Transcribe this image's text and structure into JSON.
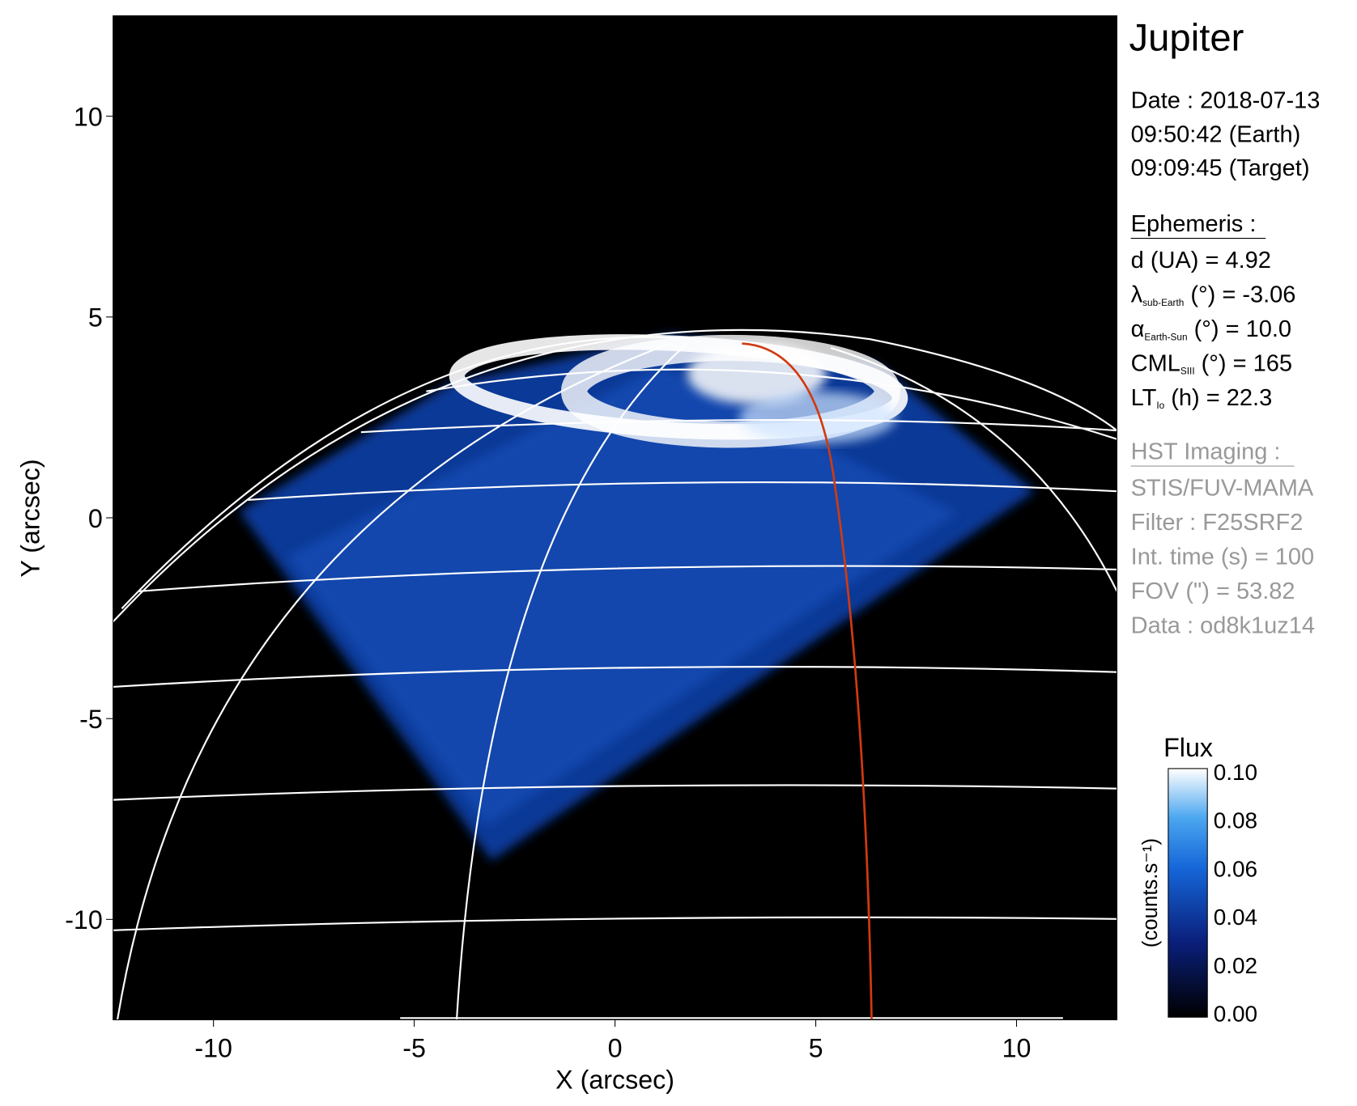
{
  "chart_data": {
    "type": "image",
    "title": "Jupiter",
    "xlabel": "X (arcsec)",
    "ylabel": "Y (arcsec)",
    "xlim": [
      -12.5,
      12.5
    ],
    "ylim": [
      -12.5,
      12.5
    ],
    "xticks": [
      -10,
      -5,
      0,
      5,
      10
    ],
    "yticks": [
      -10,
      -5,
      0,
      5,
      10
    ],
    "colorbar": {
      "title": "Flux",
      "label": "(counts.s⁻¹)",
      "lim": [
        0,
        0.1
      ],
      "ticks": [
        {
          "value": 0,
          "label": "0.00"
        },
        {
          "value": 0.02,
          "label": "0.02"
        },
        {
          "value": 0.04,
          "label": "0.04"
        },
        {
          "value": 0.06,
          "label": "0.06"
        },
        {
          "value": 0.08,
          "label": "0.08"
        },
        {
          "value": 0.1,
          "label": "0.10"
        }
      ]
    },
    "info": {
      "date": [
        "Date : 2018-07-13",
        "09:50:42 (Earth)",
        "09:09:45 (Target)"
      ],
      "ephemeris_title": "Ephemeris :",
      "ephemeris": [
        {
          "symbol": "d (UA)    = 4.92"
        },
        {
          "symbol": "λ",
          "sub": "sub-Earth",
          "text": " (°) = -3.06"
        },
        {
          "symbol": "α",
          "sub": "Earth-Sun",
          "text": " (°) = 10.0"
        },
        {
          "symbol": "CML",
          "sub": "SIII",
          "text": " (°) = 165"
        },
        {
          "symbol": "LT",
          "sub": "Io",
          "text": " (h) = 22.3"
        }
      ],
      "imaging_title": "HST Imaging :",
      "imaging": [
        "STIS/FUV-MAMA",
        "Filter : F25SRF2",
        "Int. time (s) = 100",
        "FOV (\") = 53.82",
        "Data : od8k1uz14"
      ]
    }
  }
}
